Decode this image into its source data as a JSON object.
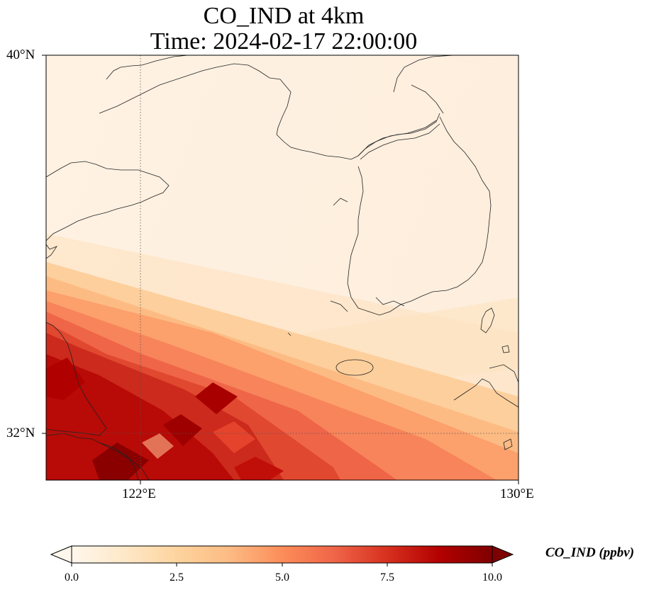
{
  "title": {
    "line1": "CO_IND at 4km",
    "line2": "Time: 2024-02-17 22:00:00"
  },
  "map": {
    "lat_ticks": [
      "40°N",
      "32°N"
    ],
    "lon_ticks": [
      "122°E",
      "130°E"
    ],
    "extent": {
      "lon_min": 120,
      "lon_max": 130,
      "lat_min": 31,
      "lat_max": 40
    },
    "gridlines": {
      "lons": [
        122
      ],
      "lats": [
        32
      ],
      "style": "dotted"
    }
  },
  "colorbar": {
    "label": "CO_IND (ppbv)",
    "ticks": [
      "0.0",
      "2.5",
      "5.0",
      "7.5",
      "10.0"
    ],
    "min": 0,
    "max": 10,
    "extend": "both",
    "cmap": [
      "#fff7ec",
      "#fee8c8",
      "#fdd49e",
      "#fdbb84",
      "#fc8d59",
      "#ef6548",
      "#d7301f",
      "#b30000",
      "#7f0000"
    ]
  }
}
